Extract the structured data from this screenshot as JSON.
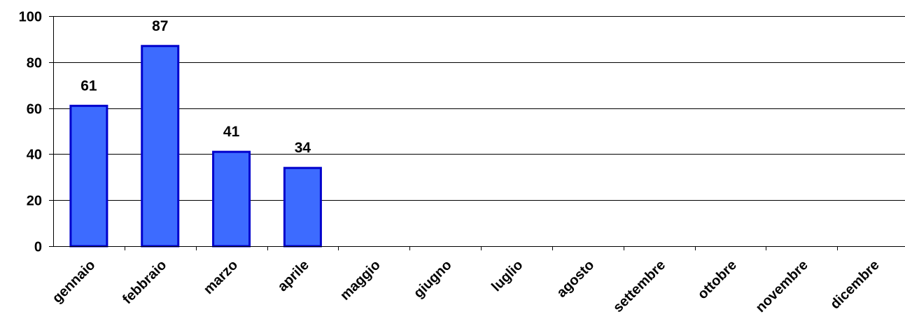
{
  "chart_data": {
    "type": "bar",
    "title": "",
    "xlabel": "",
    "ylabel": "",
    "categories": [
      "gennaio",
      "febbraio",
      "marzo",
      "aprile",
      "maggio",
      "giugno",
      "luglio",
      "agosto",
      "settembre",
      "ottobre",
      "novembre",
      "dicembre"
    ],
    "values": [
      61,
      87,
      41,
      34,
      null,
      null,
      null,
      null,
      null,
      null,
      null,
      null
    ],
    "data_labels": [
      "61",
      "87",
      "41",
      "34",
      "",
      "",
      "",
      "",
      "",
      "",
      "",
      ""
    ],
    "ylim": [
      0,
      100
    ],
    "yticks": [
      0,
      20,
      40,
      60,
      80,
      100
    ],
    "ytick_labels": [
      "0",
      "20",
      "40",
      "60",
      "80",
      "100"
    ],
    "grid": true,
    "legend": "none",
    "colors": {
      "bar_fill": "#3d6bff",
      "bar_stroke": "#0000cc",
      "gridline": "#000000",
      "axis": "#000000",
      "text": "#000000"
    }
  }
}
